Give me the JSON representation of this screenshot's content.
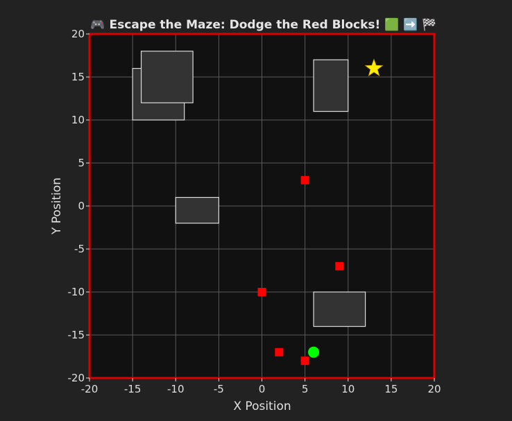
{
  "title": "🎮 Escape the Maze: Dodge the Red Blocks! 🟩 ➡️ 🏁",
  "chart_data": {
    "type": "scatter",
    "title": "🎮 Escape the Maze: Dodge the Red Blocks! 🟩 ➡️ 🏁",
    "xlabel": "X Position",
    "ylabel": "Y Position",
    "xlim": [
      -20,
      20
    ],
    "ylim": [
      -20,
      20
    ],
    "xticks": [
      "-20",
      "-15",
      "-10",
      "-5",
      "0",
      "5",
      "10",
      "15",
      "20"
    ],
    "yticks": [
      "20",
      "15",
      "10",
      "5",
      "0",
      "-5",
      "-10",
      "-15",
      "-20"
    ],
    "grid": true,
    "walls": [
      {
        "x0": -15,
        "x1": -9,
        "y0": 10,
        "y1": 16
      },
      {
        "x0": -14,
        "x1": -8,
        "y0": 12,
        "y1": 18
      },
      {
        "x0": 6,
        "x1": 10,
        "y0": 11,
        "y1": 17
      },
      {
        "x0": -10,
        "x1": -5,
        "y0": -2,
        "y1": 1
      },
      {
        "x0": 6,
        "x1": 12,
        "y0": -14,
        "y1": -10
      }
    ],
    "enemies": [
      {
        "x": 5,
        "y": 3
      },
      {
        "x": 9,
        "y": -7
      },
      {
        "x": 0,
        "y": -10
      },
      {
        "x": 2,
        "y": -17
      },
      {
        "x": 5,
        "y": -18
      }
    ],
    "player": {
      "x": 6,
      "y": -17
    },
    "goal": {
      "x": 13,
      "y": 16
    },
    "colors": {
      "background": "#222222",
      "plot_background": "#111111",
      "plot_border": "#dd0000",
      "grid": "#5a5a5a",
      "wall_fill": "#333333",
      "wall_stroke": "#dddddd",
      "enemy": "#ff0000",
      "player": "#00ff00",
      "goal": "#ffee00",
      "text": "#e0e0e0"
    }
  }
}
